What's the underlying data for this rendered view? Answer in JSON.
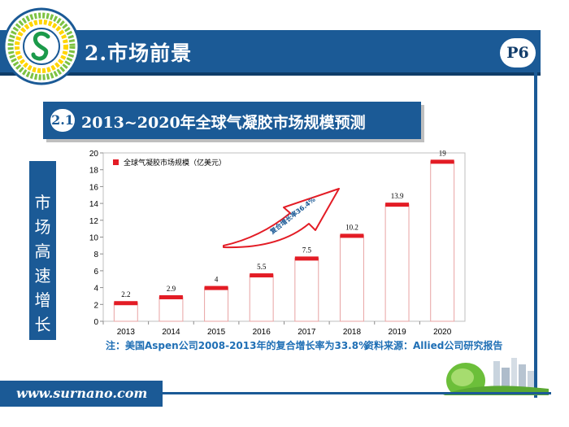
{
  "header": {
    "title": "2.市场前景",
    "page": "P6"
  },
  "section": {
    "number": "2.1",
    "title": "2013~2020年全球气凝胶市场规模预测"
  },
  "side_label": [
    "市",
    "场",
    "高",
    "速",
    "增",
    "长"
  ],
  "chart_data": {
    "type": "bar",
    "categories": [
      "2013",
      "2014",
      "2015",
      "2016",
      "2017",
      "2018",
      "2019",
      "2020"
    ],
    "series": [
      {
        "name": "全球气凝胶市场规模（亿美元）",
        "values": [
          2.2,
          2.9,
          4,
          5.5,
          7.5,
          10.2,
          13.9,
          19
        ]
      }
    ],
    "data_labels": [
      "2.2",
      "2.9",
      "4",
      "5.5",
      "7.5",
      "10.2",
      "13.9",
      "19"
    ],
    "ylim": [
      0,
      20
    ],
    "yticks": [
      0,
      2,
      4,
      6,
      8,
      10,
      12,
      14,
      16,
      18,
      20
    ],
    "annotation": "复合增长率36.4%",
    "legend_position": "top-left",
    "grid": false,
    "colors": {
      "bar_fill": "#ffffff",
      "bar_edge": "#e8a3a3",
      "bar_top": "#e31c25",
      "arrow": "#e31c25"
    }
  },
  "footnotes": {
    "note": "注：美国Aspen公司2008-2013年的复合增长率为33.8%",
    "source": "资料来源：Allied公司研究报告"
  },
  "footer": {
    "url": "www.surnano.com"
  },
  "colors": {
    "primary": "#1b5a96",
    "note_text": "#1f6fb5"
  }
}
